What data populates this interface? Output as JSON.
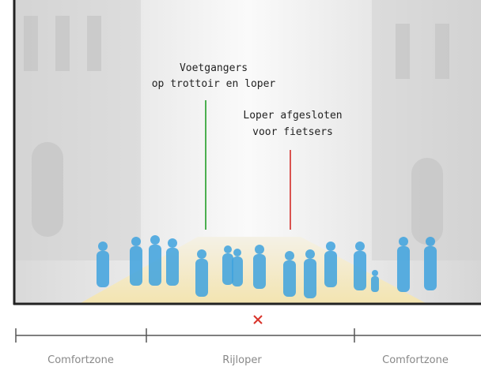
{
  "annotations": [
    {
      "lines": [
        "Voetgangers",
        "op trottoir en loper"
      ]
    },
    {
      "lines": [
        "Loper afgesloten",
        "voor fietsers"
      ]
    }
  ],
  "zones": [
    "Comfortzone",
    "Rijloper",
    "Comfortzone"
  ]
}
